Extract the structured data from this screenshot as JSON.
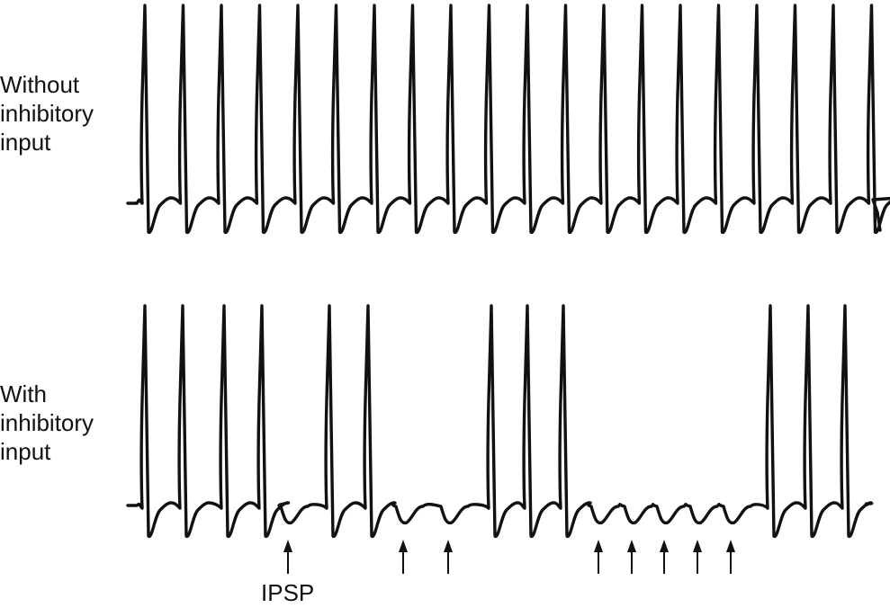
{
  "top_label": [
    "Without",
    "inhibitory",
    "input"
  ],
  "bottom_label": [
    "With",
    "inhibitory",
    "input"
  ],
  "ipsp_label": "IPSP",
  "colors": {
    "trace": "#111111",
    "background": "#ffffff"
  },
  "top_trace": {
    "spike_count": 20
  },
  "bottom_trace": {
    "spike_groups": [
      "4 spikes",
      "2 spikes",
      "3 spikes",
      "3 spikes"
    ],
    "ipsp_count": 8
  }
}
